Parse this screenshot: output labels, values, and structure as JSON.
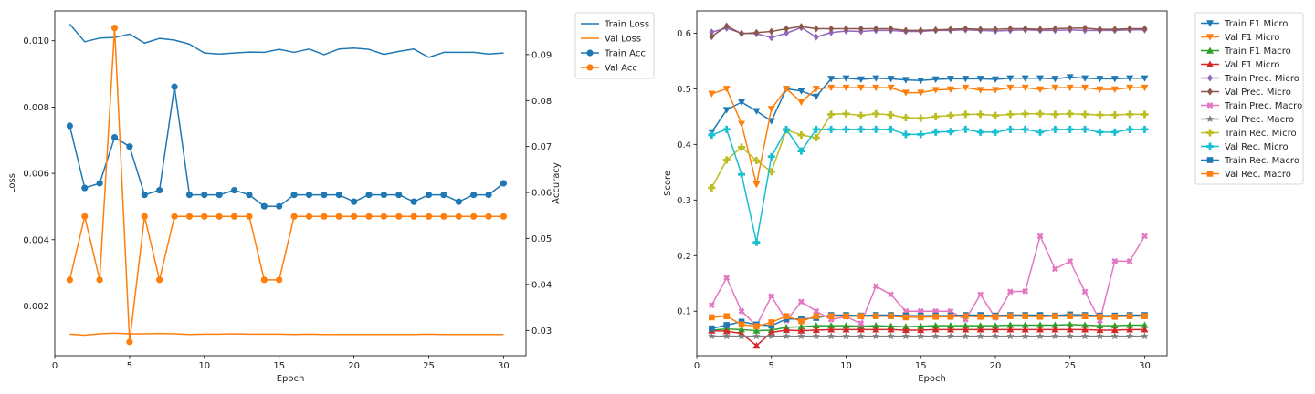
{
  "colors": {
    "tab_blue": "#1f77b4",
    "tab_orange": "#ff7f0e",
    "tab_green": "#2ca02c",
    "tab_red": "#d62728",
    "tab_purple": "#9467bd",
    "tab_brown": "#8c564b",
    "tab_pink": "#e377c2",
    "tab_gray": "#7f7f7f",
    "tab_olive": "#bcbd22",
    "tab_cyan": "#17becf"
  },
  "chart_data": [
    {
      "type": "line",
      "xlabel": "Epoch",
      "ylabel": "Loss",
      "y2label": "Accuracy",
      "xlim": [
        0,
        31.5
      ],
      "ylim": [
        0.0005,
        0.0109
      ],
      "y2lim": [
        0.0245,
        0.0995
      ],
      "xticks": [
        0,
        5,
        10,
        15,
        20,
        25,
        30
      ],
      "yticks": [
        0.002,
        0.004,
        0.006,
        0.008,
        0.01
      ],
      "y2ticks": [
        0.03,
        0.04,
        0.05,
        0.06,
        0.07,
        0.08,
        0.09
      ],
      "legend_position": "outside-top-right",
      "x": [
        1,
        2,
        3,
        4,
        5,
        6,
        7,
        8,
        9,
        10,
        11,
        12,
        13,
        14,
        15,
        16,
        17,
        18,
        19,
        20,
        21,
        22,
        23,
        24,
        25,
        26,
        27,
        28,
        29,
        30
      ],
      "series": [
        {
          "name": "Train Loss",
          "axis": "left",
          "color": "#1f77b4",
          "marker": "none",
          "values": [
            0.0105,
            0.00997,
            0.01008,
            0.0101,
            0.0102,
            0.00993,
            0.01007,
            0.01002,
            0.0099,
            0.00963,
            0.0096,
            0.00963,
            0.00966,
            0.00965,
            0.00974,
            0.00965,
            0.00975,
            0.00958,
            0.00975,
            0.00978,
            0.00974,
            0.00959,
            0.00968,
            0.00975,
            0.0095,
            0.00965,
            0.00965,
            0.00965,
            0.0096,
            0.00963
          ]
        },
        {
          "name": "Val Loss",
          "axis": "left",
          "color": "#ff7f0e",
          "marker": "none",
          "values": [
            0.00115,
            0.00112,
            0.00116,
            0.00118,
            0.00116,
            0.00116,
            0.00117,
            0.00116,
            0.00114,
            0.00115,
            0.00115,
            0.00116,
            0.00115,
            0.00115,
            0.00115,
            0.00114,
            0.00115,
            0.00114,
            0.00114,
            0.00114,
            0.00114,
            0.00114,
            0.00114,
            0.00114,
            0.00115,
            0.00114,
            0.00114,
            0.00114,
            0.00114,
            0.00114
          ]
        },
        {
          "name": "Train Acc",
          "axis": "right",
          "color": "#1f77b4",
          "marker": "circle",
          "values": [
            0.0745,
            0.061,
            0.062,
            0.072,
            0.07,
            0.0595,
            0.0605,
            0.083,
            0.0595,
            0.0595,
            0.0595,
            0.0605,
            0.0595,
            0.057,
            0.057,
            0.0595,
            0.0595,
            0.0595,
            0.0595,
            0.058,
            0.0595,
            0.0595,
            0.0595,
            0.058,
            0.0595,
            0.0595,
            0.058,
            0.0595,
            0.0595,
            0.062
          ]
        },
        {
          "name": "Val Acc",
          "axis": "right",
          "color": "#ff7f0e",
          "marker": "circle",
          "values": [
            0.041,
            0.0548,
            0.041,
            0.0958,
            0.0275,
            0.0548,
            0.041,
            0.0548,
            0.0548,
            0.0548,
            0.0548,
            0.0548,
            0.0548,
            0.041,
            0.041,
            0.0548,
            0.0548,
            0.0548,
            0.0548,
            0.0548,
            0.0548,
            0.0548,
            0.0548,
            0.0548,
            0.0548,
            0.0548,
            0.0548,
            0.0548,
            0.0548,
            0.0548
          ]
        }
      ]
    },
    {
      "type": "line",
      "xlabel": "Epoch",
      "ylabel": "Score",
      "xlim": [
        0,
        31.5
      ],
      "ylim": [
        0.02,
        0.64
      ],
      "xticks": [
        0,
        5,
        10,
        15,
        20,
        25,
        30
      ],
      "yticks": [
        0.1,
        0.2,
        0.3,
        0.4,
        0.5,
        0.6
      ],
      "legend_position": "outside-top-right",
      "x": [
        1,
        2,
        3,
        4,
        5,
        6,
        7,
        8,
        9,
        10,
        11,
        12,
        13,
        14,
        15,
        16,
        17,
        18,
        19,
        20,
        21,
        22,
        23,
        24,
        25,
        26,
        27,
        28,
        29,
        30
      ],
      "series": [
        {
          "name": "Train F1 Micro",
          "color": "#1f77b4",
          "marker": "triangle-down",
          "values": [
            0.422,
            0.462,
            0.476,
            0.46,
            0.442,
            0.5,
            0.496,
            0.486,
            0.518,
            0.519,
            0.517,
            0.519,
            0.518,
            0.516,
            0.515,
            0.517,
            0.518,
            0.518,
            0.518,
            0.517,
            0.519,
            0.519,
            0.519,
            0.518,
            0.521,
            0.519,
            0.518,
            0.518,
            0.519,
            0.519
          ]
        },
        {
          "name": "Val F1 Micro",
          "color": "#ff7f0e",
          "marker": "triangle-down",
          "values": [
            0.491,
            0.5,
            0.437,
            0.328,
            0.464,
            0.5,
            0.476,
            0.5,
            0.502,
            0.502,
            0.502,
            0.502,
            0.502,
            0.493,
            0.493,
            0.498,
            0.499,
            0.502,
            0.498,
            0.498,
            0.502,
            0.502,
            0.499,
            0.502,
            0.502,
            0.502,
            0.499,
            0.499,
            0.502,
            0.502
          ]
        },
        {
          "name": "Train F1 Macro",
          "color": "#2ca02c",
          "marker": "triangle-up",
          "values": [
            0.066,
            0.068,
            0.067,
            0.065,
            0.066,
            0.071,
            0.072,
            0.074,
            0.074,
            0.074,
            0.073,
            0.074,
            0.073,
            0.072,
            0.073,
            0.074,
            0.074,
            0.074,
            0.074,
            0.074,
            0.075,
            0.075,
            0.075,
            0.075,
            0.076,
            0.075,
            0.074,
            0.074,
            0.075,
            0.075
          ]
        },
        {
          "name": "Val F1 Micro",
          "color": "#d62728",
          "marker": "triangle-up",
          "values": [
            0.065,
            0.064,
            0.06,
            0.038,
            0.062,
            0.066,
            0.065,
            0.066,
            0.067,
            0.067,
            0.067,
            0.067,
            0.067,
            0.066,
            0.066,
            0.067,
            0.067,
            0.067,
            0.067,
            0.067,
            0.067,
            0.067,
            0.067,
            0.067,
            0.067,
            0.067,
            0.066,
            0.066,
            0.067,
            0.067
          ]
        },
        {
          "name": "Train Prec. Micro",
          "color": "#9467bd",
          "marker": "diamond",
          "values": [
            0.602,
            0.609,
            0.6,
            0.599,
            0.592,
            0.6,
            0.61,
            0.593,
            0.601,
            0.604,
            0.603,
            0.605,
            0.605,
            0.603,
            0.603,
            0.605,
            0.605,
            0.606,
            0.605,
            0.604,
            0.605,
            0.606,
            0.605,
            0.605,
            0.606,
            0.605,
            0.605,
            0.605,
            0.606,
            0.606
          ]
        },
        {
          "name": "Val Prec. Micro",
          "color": "#8c564b",
          "marker": "diamond",
          "values": [
            0.594,
            0.613,
            0.599,
            0.601,
            0.603,
            0.608,
            0.612,
            0.608,
            0.608,
            0.608,
            0.608,
            0.608,
            0.608,
            0.605,
            0.605,
            0.606,
            0.607,
            0.608,
            0.607,
            0.607,
            0.608,
            0.608,
            0.607,
            0.608,
            0.609,
            0.609,
            0.607,
            0.607,
            0.608,
            0.608
          ]
        },
        {
          "name": "Train Prec. Macro",
          "color": "#e377c2",
          "marker": "x",
          "values": [
            0.111,
            0.16,
            0.1,
            0.074,
            0.127,
            0.083,
            0.117,
            0.1,
            0.085,
            0.09,
            0.078,
            0.145,
            0.13,
            0.1,
            0.1,
            0.1,
            0.1,
            0.085,
            0.13,
            0.088,
            0.135,
            0.136,
            0.235,
            0.176,
            0.19,
            0.135,
            0.083,
            0.19,
            0.19,
            0.235
          ]
        },
        {
          "name": "Val Prec. Macro",
          "color": "#7f7f7f",
          "marker": "star",
          "values": [
            0.055,
            0.055,
            0.055,
            0.055,
            0.055,
            0.055,
            0.055,
            0.055,
            0.055,
            0.055,
            0.055,
            0.055,
            0.055,
            0.055,
            0.055,
            0.055,
            0.055,
            0.055,
            0.055,
            0.055,
            0.055,
            0.055,
            0.055,
            0.055,
            0.055,
            0.055,
            0.055,
            0.055,
            0.055,
            0.055
          ]
        },
        {
          "name": "Train Rec. Micro",
          "color": "#bcbd22",
          "marker": "plus",
          "values": [
            0.322,
            0.372,
            0.395,
            0.371,
            0.351,
            0.426,
            0.417,
            0.412,
            0.454,
            0.455,
            0.452,
            0.455,
            0.453,
            0.448,
            0.447,
            0.45,
            0.452,
            0.454,
            0.454,
            0.452,
            0.454,
            0.455,
            0.455,
            0.454,
            0.455,
            0.454,
            0.453,
            0.453,
            0.454,
            0.454
          ]
        },
        {
          "name": "Val Rec. Micro",
          "color": "#17becf",
          "marker": "plus",
          "values": [
            0.417,
            0.427,
            0.346,
            0.224,
            0.378,
            0.427,
            0.388,
            0.427,
            0.427,
            0.427,
            0.427,
            0.427,
            0.427,
            0.418,
            0.418,
            0.422,
            0.423,
            0.427,
            0.422,
            0.422,
            0.427,
            0.427,
            0.422,
            0.427,
            0.427,
            0.427,
            0.422,
            0.422,
            0.427,
            0.427
          ]
        },
        {
          "name": "Train Rec. Macro",
          "color": "#1f77b4",
          "marker": "square",
          "values": [
            0.069,
            0.075,
            0.081,
            0.076,
            0.074,
            0.086,
            0.086,
            0.088,
            0.093,
            0.093,
            0.092,
            0.093,
            0.093,
            0.092,
            0.092,
            0.092,
            0.092,
            0.093,
            0.093,
            0.092,
            0.093,
            0.093,
            0.093,
            0.092,
            0.094,
            0.093,
            0.092,
            0.092,
            0.093,
            0.093
          ]
        },
        {
          "name": "Val Rec. Macro",
          "color": "#ff7f0e",
          "marker": "square",
          "values": [
            0.089,
            0.091,
            0.076,
            0.073,
            0.08,
            0.091,
            0.082,
            0.091,
            0.091,
            0.091,
            0.091,
            0.091,
            0.091,
            0.089,
            0.089,
            0.09,
            0.09,
            0.091,
            0.09,
            0.09,
            0.091,
            0.091,
            0.09,
            0.091,
            0.091,
            0.091,
            0.09,
            0.09,
            0.091,
            0.091
          ]
        }
      ]
    }
  ]
}
